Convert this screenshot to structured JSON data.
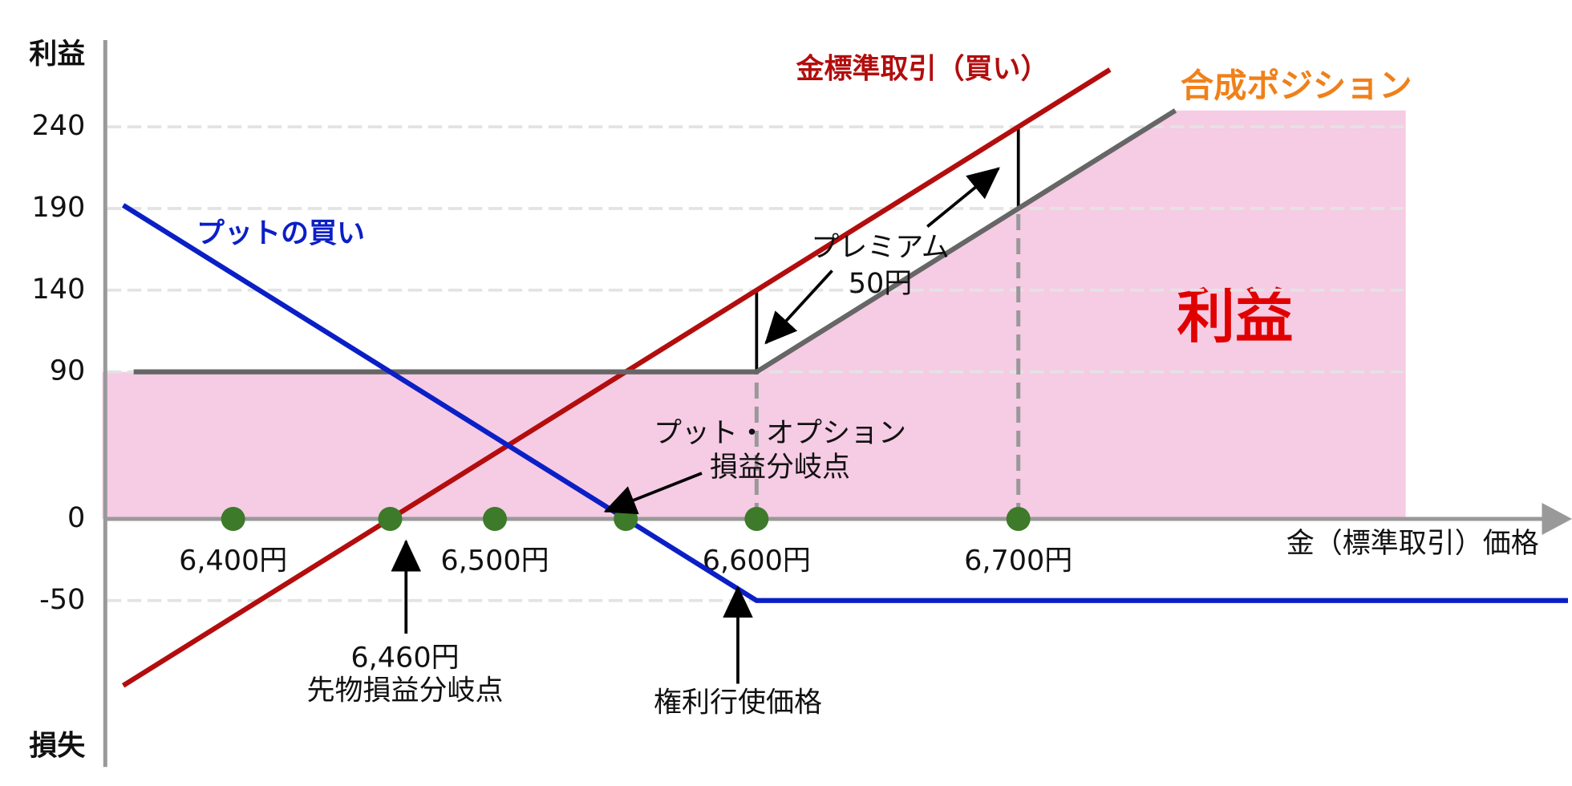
{
  "chart_data": {
    "type": "line",
    "y_label_top": "利益",
    "y_label_bottom": "損失",
    "x_label": "金（標準取引）価格",
    "xlim": [
      6350,
      6910
    ],
    "ylim": [
      -150,
      290
    ],
    "xticks": [
      {
        "value": 6400,
        "label": "6,400円"
      },
      {
        "value": 6500,
        "label": "6,500円"
      },
      {
        "value": 6600,
        "label": "6,600円"
      },
      {
        "value": 6700,
        "label": "6,700円"
      }
    ],
    "yticks": [
      -50,
      0,
      90,
      140,
      190,
      240
    ],
    "grid": true,
    "area": {
      "name": "利益",
      "color": "#f6cbe4",
      "x": [
        6350,
        6600,
        6760,
        6848
      ],
      "values": [
        90,
        90,
        250,
        250
      ]
    },
    "series": [
      {
        "name": "金標準取引（買い）",
        "color": "#b30d0d",
        "x": [
          6358,
          6735
        ],
        "values": [
          -102,
          275
        ]
      },
      {
        "name": "合成ポジション",
        "color": "#f08019",
        "line_color": "#666666",
        "x": [
          6362,
          6600,
          6760
        ],
        "values": [
          90,
          90,
          250
        ]
      },
      {
        "name": "プットの買い",
        "color": "#0b1fc6",
        "x": [
          6358,
          6600,
          6910
        ],
        "values": [
          192,
          -50,
          -50
        ]
      }
    ],
    "markers": {
      "color": "#3d7a2a",
      "x": [
        6400,
        6460,
        6500,
        6550,
        6600,
        6700
      ],
      "values": [
        0,
        0,
        0,
        0,
        0,
        0
      ]
    },
    "annotations": {
      "premium": [
        "プレミアム",
        "50円"
      ],
      "put_breakeven": [
        "プット・オプション",
        "損益分岐点"
      ],
      "futures_breakeven": [
        "6,460円",
        "先物損益分岐点"
      ],
      "strike": "権利行使価格"
    }
  }
}
